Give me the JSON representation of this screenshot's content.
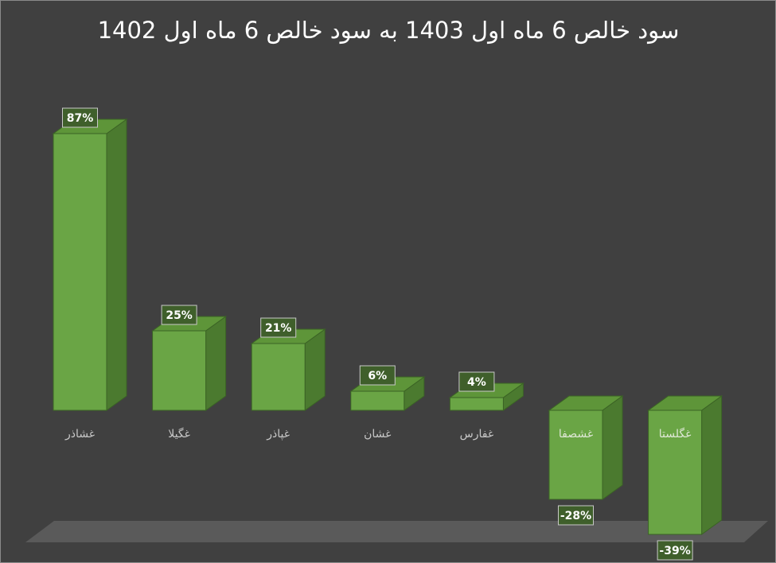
{
  "chart_data": {
    "type": "bar3d",
    "title": "سود خالص 6 ماه اول 1403 به سود خالص 6 ماه اول 1402",
    "categories": [
      "غشاذر",
      "غگیلا",
      "غپاذر",
      "غشان",
      "غفارس",
      "غشصفا",
      "غگلستا"
    ],
    "values": [
      87,
      25,
      21,
      6,
      4,
      -28,
      -39
    ],
    "value_labels": [
      "87%",
      "25%",
      "21%",
      "6%",
      "4%",
      "-28%",
      "-39%"
    ],
    "color": "#6aa545"
  }
}
